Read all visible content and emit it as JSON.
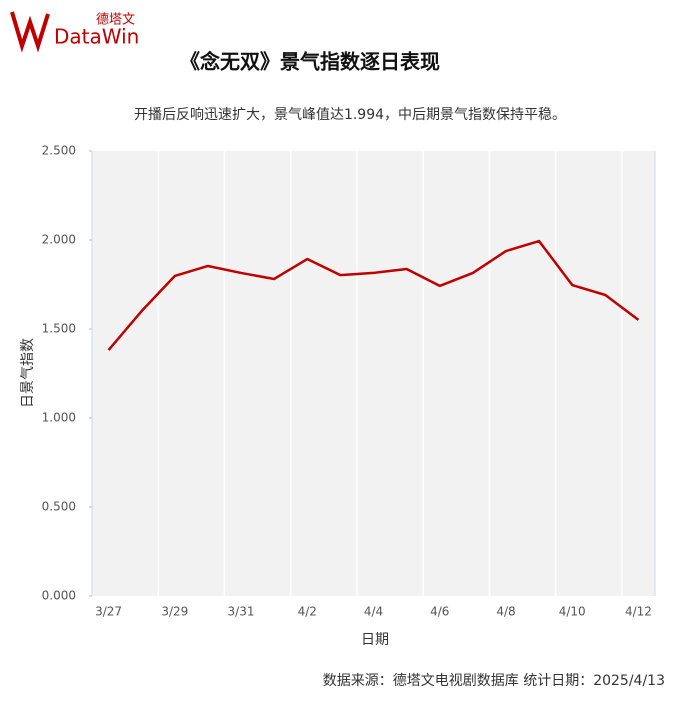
{
  "header": {
    "brand_cn": "德塔文",
    "brand_en": "DataWin"
  },
  "chart_data": {
    "type": "line",
    "title": "《念无双》景气指数逐日表现",
    "subtitle": "开播后反响迅速扩大，景气峰值达1.994，中后期景气指数保持平稳。",
    "x_label": "日期",
    "y_label": "日景气指数",
    "categories": [
      "3/27",
      null,
      "3/29",
      null,
      "3/31",
      null,
      "4/2",
      null,
      "4/4",
      null,
      "4/6",
      null,
      "4/8",
      null,
      "4/10",
      null,
      "4/12"
    ],
    "series": [
      {
        "name": "日景气指数",
        "color": "#c00000",
        "values": [
          1.382,
          1.601,
          1.798,
          1.854,
          1.815,
          1.781,
          1.893,
          1.803,
          1.815,
          1.837,
          1.742,
          1.815,
          1.938,
          1.994,
          1.747,
          1.691,
          1.551
        ]
      }
    ],
    "ylim": [
      0,
      2.5
    ],
    "yticks": [
      {
        "value": 0,
        "label": "0.000"
      },
      {
        "value": 0.5,
        "label": "0.500"
      },
      {
        "value": 1,
        "label": "1.000"
      },
      {
        "value": 1.5,
        "label": "1.500"
      },
      {
        "value": 2,
        "label": "2.000"
      },
      {
        "value": 2.5,
        "label": "2.500"
      }
    ],
    "source": "数据来源：德塔文电视剧数据库   统计日期：2025/4/13"
  }
}
